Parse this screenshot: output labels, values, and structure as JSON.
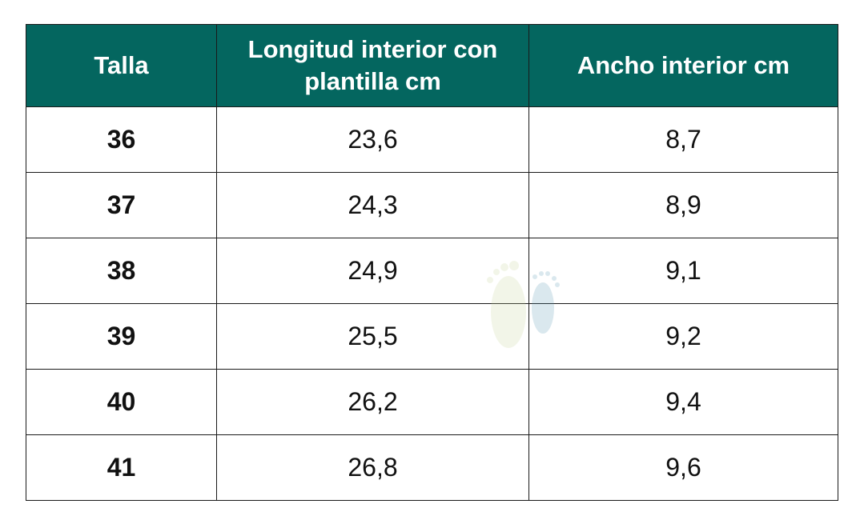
{
  "table": {
    "header": [
      "Talla",
      "Longitud interior con plantilla cm",
      "Ancho interior cm"
    ],
    "rows": [
      [
        "36",
        "23,6",
        "8,7"
      ],
      [
        "37",
        "24,3",
        "8,9"
      ],
      [
        "38",
        "24,9",
        "9,1"
      ],
      [
        "39",
        "25,5",
        "9,2"
      ],
      [
        "40",
        "26,2",
        "9,4"
      ],
      [
        "41",
        "26,8",
        "9,6"
      ]
    ]
  }
}
